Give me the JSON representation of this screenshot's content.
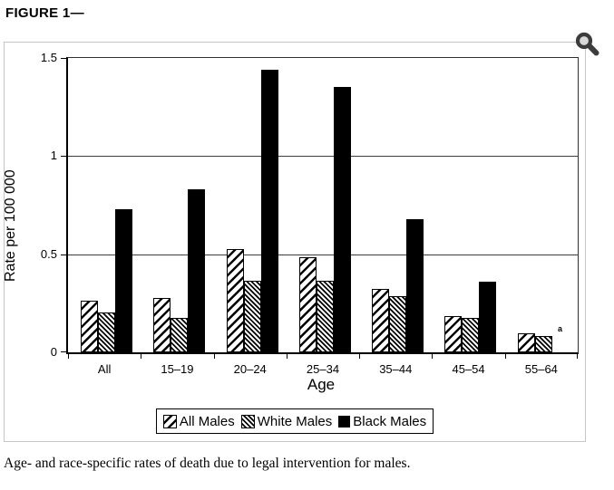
{
  "figure": {
    "title": "FIGURE 1—",
    "caption": "Age- and race-specific rates of death due to legal intervention for males.",
    "footnote_marker": "a"
  },
  "toolbar": {
    "zoom_icon": "magnifier-icon"
  },
  "colors": {
    "bar_fill_black": "#000000",
    "hatch_stroke": "#000000",
    "axis_line": "#000000",
    "gridline": "#3d3d3d",
    "panel_border": "#c6c6c6",
    "icon_dark": "#3c3c3c",
    "icon_lens_fill": "#d9d9d9"
  },
  "chart_data": {
    "type": "bar",
    "title": "",
    "xlabel": "Age",
    "ylabel": "Rate per 100 000",
    "ylim": [
      0,
      1.5
    ],
    "yticks": [
      0,
      0.5,
      1,
      1.5
    ],
    "ytick_labels": [
      "0",
      "0.5",
      "1",
      "1.5"
    ],
    "grid": true,
    "legend_position": "bottom",
    "categories": [
      "All",
      "15–19",
      "20–24",
      "25–34",
      "35–44",
      "45–54",
      "55–64"
    ],
    "series": [
      {
        "name": "All Males",
        "pattern": "diagonal-hatch",
        "values": [
          0.26,
          0.27,
          0.52,
          0.48,
          0.32,
          0.18,
          0.09
        ]
      },
      {
        "name": "White Males",
        "pattern": "fine-hatch",
        "values": [
          0.2,
          0.17,
          0.36,
          0.36,
          0.28,
          0.17,
          0.08
        ]
      },
      {
        "name": "Black Males",
        "pattern": "solid-black",
        "values": [
          0.73,
          0.83,
          1.44,
          1.35,
          0.68,
          0.36,
          null
        ]
      }
    ],
    "annotations": [
      {
        "text": "a",
        "category_index": 6,
        "value": 0.115,
        "note": "no Black Males bar shown for 55–64"
      }
    ]
  }
}
